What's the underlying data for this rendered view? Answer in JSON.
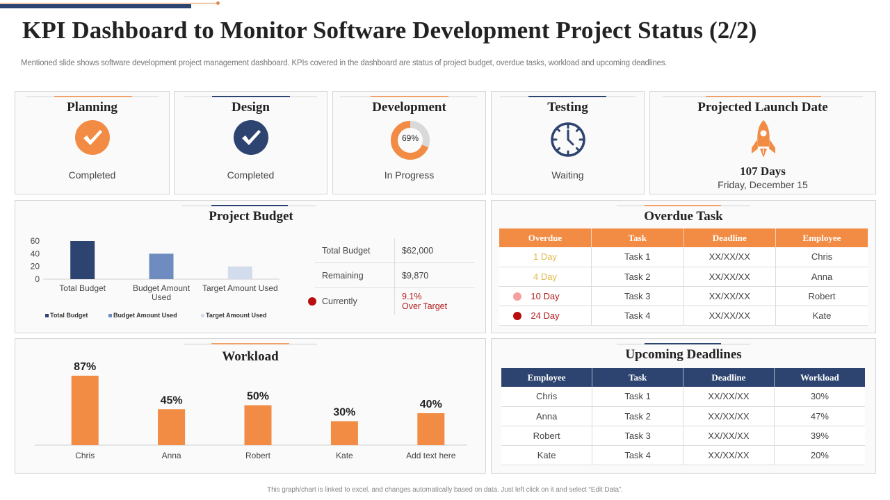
{
  "page": {
    "title": "KPI Dashboard to Monitor Software Development Project Status (2/2)",
    "subtitle": "Mentioned slide shows software development project management dashboard. KPIs covered in the dashboard are status of project budget, overdue tasks, workload and upcoming deadlines.",
    "footer": "This graph/chart is linked to excel, and changes automatically based on data. Just left click on it and select “Edit Data”."
  },
  "colors": {
    "orange": "#f28c45",
    "navy": "#2e4470",
    "mid_blue": "#6f8cc0",
    "light_blue": "#d3dcec",
    "grey": "#d9d9d9",
    "yellow_text": "#e3b94a",
    "red_text": "#b01c1c",
    "pink_dot": "#f4a0a0",
    "red_dot": "#b80e0e"
  },
  "phases": [
    {
      "title": "Planning",
      "status": "Completed",
      "icon": "check-circle-icon"
    },
    {
      "title": "Design",
      "status": "Completed",
      "icon": "check-circle-icon"
    },
    {
      "title": "Development",
      "status": "In Progress",
      "icon": "progress-donut",
      "progress_percent": 69,
      "progress_label": "69%"
    },
    {
      "title": "Testing",
      "status": "Waiting",
      "icon": "clock-icon"
    }
  ],
  "launch": {
    "title": "Projected Launch Date",
    "icon": "rocket-icon",
    "days": "107 Days",
    "date": "Friday, December 15"
  },
  "budget": {
    "title": "Project Budget",
    "table": [
      {
        "label": "Total Budget",
        "value": "$62,000"
      },
      {
        "label": "Remaining",
        "value": "$9,870"
      },
      {
        "label": "Currently",
        "value_line1": "9.1%",
        "value_line2": "Over Target",
        "status_dot": "red"
      }
    ]
  },
  "overdue": {
    "title": "Overdue Task",
    "columns": [
      "Overdue",
      "Task",
      "Deadline",
      "Employee"
    ],
    "rows": [
      {
        "overdue": "1 Day",
        "task": "Task 1",
        "deadline": "XX/XX/XX",
        "employee": "Chris",
        "level": "low"
      },
      {
        "overdue": "4 Day",
        "task": "Task 2",
        "deadline": "XX/XX/XX",
        "employee": "Anna",
        "level": "low"
      },
      {
        "overdue": "10 Day",
        "task": "Task 3",
        "deadline": "XX/XX/XX",
        "employee": "Robert",
        "level": "medium"
      },
      {
        "overdue": "24 Day",
        "task": "Task 4",
        "deadline": "XX/XX/XX",
        "employee": "Kate",
        "level": "high"
      }
    ]
  },
  "upcoming": {
    "title": "Upcoming Deadlines",
    "columns": [
      "Employee",
      "Task",
      "Deadline",
      "Workload"
    ],
    "rows": [
      {
        "employee": "Chris",
        "task": "Task 1",
        "deadline": "XX/XX/XX",
        "workload": "30%"
      },
      {
        "employee": "Anna",
        "task": "Task 2",
        "deadline": "XX/XX/XX",
        "workload": "47%"
      },
      {
        "employee": "Robert",
        "task": "Task 3",
        "deadline": "XX/XX/XX",
        "workload": "39%"
      },
      {
        "employee": "Kate",
        "task": "Task 4",
        "deadline": "XX/XX/XX",
        "workload": "20%"
      }
    ]
  },
  "workload": {
    "title": "Workload"
  },
  "chart_data": [
    {
      "type": "bar",
      "title": "Project Budget",
      "categories": [
        "Total Budget",
        "Budget Amount Used",
        "Target Amount Used"
      ],
      "category_labels": [
        [
          "Total Budget"
        ],
        [
          "Budget Amount",
          "Used"
        ],
        [
          "Target Amount Used"
        ]
      ],
      "values": [
        60,
        40,
        20
      ],
      "bar_colors": [
        "#2e4470",
        "#6f8cc0",
        "#d3dcec"
      ],
      "yticks": [
        0,
        20,
        40,
        60
      ],
      "ylim": [
        0,
        60
      ],
      "legend": [
        "Total Budget",
        "Budget Amount Used",
        "Target Amount Used"
      ],
      "legend_position": "bottom",
      "grid": false,
      "xlabel": "",
      "ylabel": ""
    },
    {
      "type": "bar",
      "title": "Workload",
      "categories": [
        "Chris",
        "Anna",
        "Robert",
        "Kate",
        "Add text here"
      ],
      "values": [
        87,
        45,
        50,
        30,
        40
      ],
      "data_labels": [
        "87%",
        "45%",
        "50%",
        "30%",
        "40%"
      ],
      "bar_color": "#f28c45",
      "ylim": [
        0,
        100
      ],
      "grid": false,
      "xlabel": "",
      "ylabel": ""
    }
  ]
}
